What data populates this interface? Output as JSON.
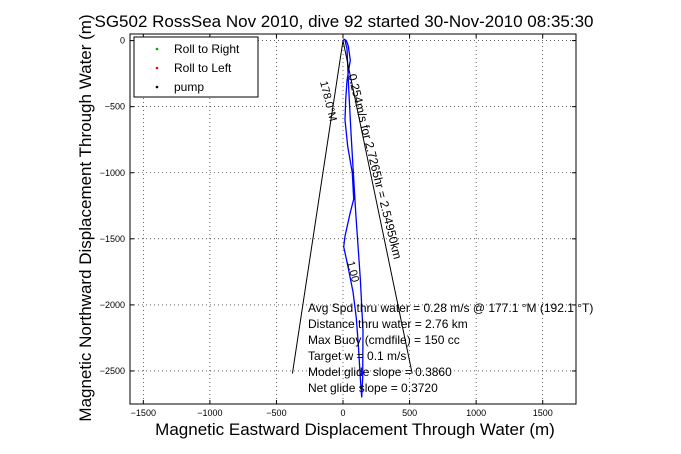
{
  "chart_data": {
    "type": "line",
    "title": "SG502 RossSea Nov 2010, dive 92 started 30-Nov-2010 08:35:30",
    "xlabel": "Magnetic Eastward Displacement Through Water (m)",
    "ylabel": "Magnetic Northward Displacement Through Water (m)",
    "xlim": [
      -1600,
      1750
    ],
    "ylim": [
      -2750,
      50
    ],
    "xticks": [
      -1500,
      -1000,
      -500,
      0,
      500,
      1000,
      1500
    ],
    "yticks": [
      0,
      -500,
      -1000,
      -1500,
      -2000,
      -2500
    ],
    "grid": true,
    "legend": {
      "placement": "top-left",
      "entries": [
        {
          "label": "Roll to Right",
          "color": "#00aa00",
          "marker": "dot"
        },
        {
          "label": "Roll to Left",
          "color": "#ff0000",
          "marker": "dot"
        },
        {
          "label": "pump",
          "color": "#000000",
          "marker": "dot"
        }
      ]
    },
    "series": [
      {
        "color": "#0000ff",
        "x": [
          0,
          10,
          25,
          40,
          55,
          30,
          20,
          15,
          35,
          70,
          80,
          55,
          15,
          5,
          35,
          75,
          100,
          115,
          130,
          140,
          148,
          150,
          130,
          95,
          60,
          40,
          30,
          15
        ],
        "y": [
          0,
          10,
          0,
          -40,
          -150,
          -300,
          -450,
          -600,
          -800,
          -1000,
          -1200,
          -1300,
          -1480,
          -1560,
          -1700,
          -1900,
          -2100,
          -2300,
          -2550,
          -2700,
          -2550,
          -2200,
          -1800,
          -1300,
          -700,
          -300,
          -60,
          0
        ]
      },
      {
        "color": "#000000",
        "x": [
          -380,
          0,
          520
        ],
        "y": [
          -2520,
          0,
          -2520
        ]
      }
    ],
    "annotations": [
      "Avg Spd thru water =  0.28 m/s @ 177.1    °M (192.1 °T)",
      "Distance thru water =  2.76 km",
      "Max Buoy (cmdfile) = 150 cc",
      "Target w = 0.1 m/s",
      "Model glide slope = 0.3860",
      "Net glide slope = 0.3720"
    ],
    "rotated_annotations": [
      "0.254m/s for 2.7265hr = 2.54950km",
      "178.0°M",
      "1.00"
    ]
  }
}
